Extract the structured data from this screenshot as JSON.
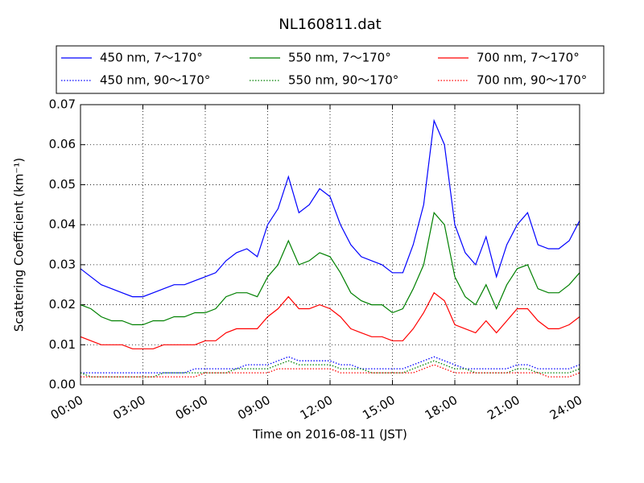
{
  "chart_data": {
    "type": "line",
    "title": "NL160811.dat",
    "xlabel": "Time on 2016-08-11 (JST)",
    "ylabel": "Scattering Coefficient (km⁻¹)",
    "x": [
      "00:00",
      "00:30",
      "01:00",
      "01:30",
      "02:00",
      "02:30",
      "03:00",
      "03:30",
      "04:00",
      "04:30",
      "05:00",
      "05:30",
      "06:00",
      "06:30",
      "07:00",
      "07:30",
      "08:00",
      "08:30",
      "09:00",
      "09:30",
      "10:00",
      "10:30",
      "11:00",
      "11:30",
      "12:00",
      "12:30",
      "13:00",
      "13:30",
      "14:00",
      "14:30",
      "15:00",
      "15:30",
      "16:00",
      "16:30",
      "17:00",
      "17:30",
      "18:00",
      "18:30",
      "19:00",
      "19:30",
      "20:00",
      "20:30",
      "21:00",
      "21:30",
      "22:00",
      "22:30",
      "23:00",
      "23:30",
      "24:00"
    ],
    "xlim": [
      "00:00",
      "24:00"
    ],
    "xticks": [
      "00:00",
      "03:00",
      "06:00",
      "09:00",
      "12:00",
      "15:00",
      "18:00",
      "21:00",
      "24:00"
    ],
    "ylim": [
      0,
      0.07
    ],
    "yticks": [
      {
        "value": 0,
        "label": "0.00"
      },
      0.01,
      0.02,
      0.03,
      0.04,
      0.05,
      0.06,
      0.07
    ],
    "grid": true,
    "legend": "top",
    "series": [
      {
        "name": "450 nm, 7～170°",
        "color": "#0000ff",
        "linestyle": "solid",
        "values": [
          0.029,
          0.027,
          0.025,
          0.024,
          0.023,
          0.022,
          0.022,
          0.023,
          0.024,
          0.025,
          0.025,
          0.026,
          0.027,
          0.028,
          0.031,
          0.033,
          0.034,
          0.032,
          0.04,
          0.044,
          0.052,
          0.043,
          0.045,
          0.049,
          0.047,
          0.04,
          0.035,
          0.032,
          0.031,
          0.03,
          0.028,
          0.028,
          0.035,
          0.045,
          0.066,
          0.06,
          0.04,
          0.033,
          0.03,
          0.037,
          0.027,
          0.035,
          0.04,
          0.043,
          0.035,
          0.034,
          0.034,
          0.036,
          0.041
        ]
      },
      {
        "name": "450 nm, 90～170°",
        "color": "#0000ff",
        "linestyle": "dotted",
        "values": [
          0.003,
          0.003,
          0.003,
          0.003,
          0.003,
          0.003,
          0.003,
          0.003,
          0.003,
          0.003,
          0.003,
          0.004,
          0.004,
          0.004,
          0.004,
          0.004,
          0.005,
          0.005,
          0.005,
          0.006,
          0.007,
          0.006,
          0.006,
          0.006,
          0.006,
          0.005,
          0.005,
          0.004,
          0.004,
          0.004,
          0.004,
          0.004,
          0.005,
          0.006,
          0.007,
          0.006,
          0.005,
          0.004,
          0.004,
          0.004,
          0.004,
          0.004,
          0.005,
          0.005,
          0.004,
          0.004,
          0.004,
          0.004,
          0.005
        ]
      },
      {
        "name": "550 nm, 7～170°",
        "color": "#008000",
        "linestyle": "solid",
        "values": [
          0.02,
          0.019,
          0.017,
          0.016,
          0.016,
          0.015,
          0.015,
          0.016,
          0.016,
          0.017,
          0.017,
          0.018,
          0.018,
          0.019,
          0.022,
          0.023,
          0.023,
          0.022,
          0.027,
          0.03,
          0.036,
          0.03,
          0.031,
          0.033,
          0.032,
          0.028,
          0.023,
          0.021,
          0.02,
          0.02,
          0.018,
          0.019,
          0.024,
          0.03,
          0.043,
          0.04,
          0.027,
          0.022,
          0.02,
          0.025,
          0.019,
          0.025,
          0.029,
          0.03,
          0.024,
          0.023,
          0.023,
          0.025,
          0.028
        ]
      },
      {
        "name": "550 nm, 90～170°",
        "color": "#008000",
        "linestyle": "dotted",
        "values": [
          0.003,
          0.002,
          0.002,
          0.002,
          0.002,
          0.002,
          0.002,
          0.002,
          0.003,
          0.003,
          0.003,
          0.003,
          0.003,
          0.003,
          0.003,
          0.004,
          0.004,
          0.004,
          0.004,
          0.005,
          0.006,
          0.005,
          0.005,
          0.005,
          0.005,
          0.004,
          0.004,
          0.004,
          0.003,
          0.003,
          0.003,
          0.003,
          0.004,
          0.005,
          0.006,
          0.005,
          0.004,
          0.004,
          0.003,
          0.003,
          0.003,
          0.003,
          0.004,
          0.004,
          0.003,
          0.003,
          0.003,
          0.003,
          0.004
        ]
      },
      {
        "name": "700 nm, 7～170°",
        "color": "#ff0000",
        "linestyle": "solid",
        "values": [
          0.012,
          0.011,
          0.01,
          0.01,
          0.01,
          0.009,
          0.009,
          0.009,
          0.01,
          0.01,
          0.01,
          0.01,
          0.011,
          0.011,
          0.013,
          0.014,
          0.014,
          0.014,
          0.017,
          0.019,
          0.022,
          0.019,
          0.019,
          0.02,
          0.019,
          0.017,
          0.014,
          0.013,
          0.012,
          0.012,
          0.011,
          0.011,
          0.014,
          0.018,
          0.023,
          0.021,
          0.015,
          0.014,
          0.013,
          0.016,
          0.013,
          0.016,
          0.019,
          0.019,
          0.016,
          0.014,
          0.014,
          0.015,
          0.017
        ]
      },
      {
        "name": "700 nm, 90～170°",
        "color": "#ff0000",
        "linestyle": "dotted",
        "values": [
          0.002,
          0.002,
          0.002,
          0.002,
          0.002,
          0.002,
          0.002,
          0.002,
          0.002,
          0.002,
          0.002,
          0.002,
          0.003,
          0.003,
          0.003,
          0.003,
          0.003,
          0.003,
          0.003,
          0.004,
          0.004,
          0.004,
          0.004,
          0.004,
          0.004,
          0.003,
          0.003,
          0.003,
          0.003,
          0.003,
          0.003,
          0.003,
          0.003,
          0.004,
          0.005,
          0.004,
          0.003,
          0.003,
          0.003,
          0.003,
          0.003,
          0.003,
          0.003,
          0.003,
          0.003,
          0.002,
          0.002,
          0.002,
          0.003
        ]
      }
    ]
  }
}
